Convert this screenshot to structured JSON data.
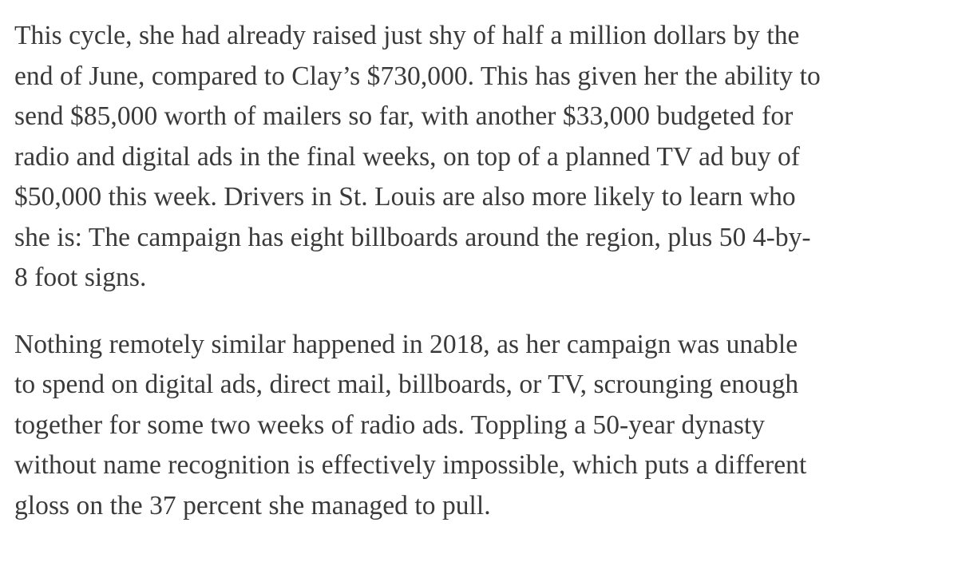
{
  "article": {
    "paragraphs": [
      {
        "lines": [
          "This cycle, she had already raised just shy of half a million dollars by the",
          "end of June, compared to Clay’s $730,000. This has given her the ability to",
          "send $85,000 worth of mailers so far, with another $33,000 budgeted for",
          "radio and digital ads in the final weeks, on top of a planned TV ad buy of",
          "$50,000 this week. Drivers in St. Louis are also more likely to learn who",
          "she is: The campaign has eight billboards around the region, plus 50 4-by-",
          "8 foot signs."
        ]
      },
      {
        "lines": [
          "Nothing remotely similar happened in 2018, as her campaign was unable",
          "to spend on digital ads, direct mail, billboards, or TV, scrounging enough",
          "together for some two weeks of radio ads. Toppling a 50-year dynasty",
          "without name recognition is effectively impossible, which puts a different",
          "gloss on the 37 percent she managed to pull."
        ]
      }
    ]
  }
}
